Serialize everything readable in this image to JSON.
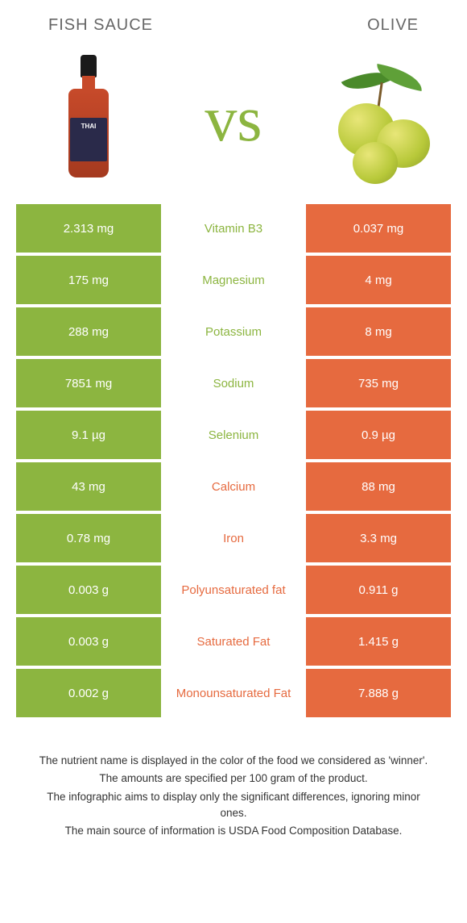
{
  "colors": {
    "left": "#8cb540",
    "right": "#e66a3f",
    "bg": "#ffffff",
    "text": "#333333"
  },
  "header": {
    "left": "Fish sauce",
    "right": "Olive"
  },
  "vs": "vs",
  "rows": [
    {
      "nutrient": "Vitamin B3",
      "left": "2.313 mg",
      "right": "0.037 mg",
      "winner": "left"
    },
    {
      "nutrient": "Magnesium",
      "left": "175 mg",
      "right": "4 mg",
      "winner": "left"
    },
    {
      "nutrient": "Potassium",
      "left": "288 mg",
      "right": "8 mg",
      "winner": "left"
    },
    {
      "nutrient": "Sodium",
      "left": "7851 mg",
      "right": "735 mg",
      "winner": "left"
    },
    {
      "nutrient": "Selenium",
      "left": "9.1 µg",
      "right": "0.9 µg",
      "winner": "left"
    },
    {
      "nutrient": "Calcium",
      "left": "43 mg",
      "right": "88 mg",
      "winner": "right"
    },
    {
      "nutrient": "Iron",
      "left": "0.78 mg",
      "right": "3.3 mg",
      "winner": "right"
    },
    {
      "nutrient": "Polyunsaturated fat",
      "left": "0.003 g",
      "right": "0.911 g",
      "winner": "right"
    },
    {
      "nutrient": "Saturated Fat",
      "left": "0.003 g",
      "right": "1.415 g",
      "winner": "right"
    },
    {
      "nutrient": "Monounsaturated Fat",
      "left": "0.002 g",
      "right": "7.888 g",
      "winner": "right"
    }
  ],
  "footer": [
    "The nutrient name is displayed in the color of the food we considered as 'winner'.",
    "The amounts are specified per 100 gram of the product.",
    "The infographic aims to display only the significant differences, ignoring minor ones.",
    "The main source of information is USDA Food Composition Database."
  ]
}
